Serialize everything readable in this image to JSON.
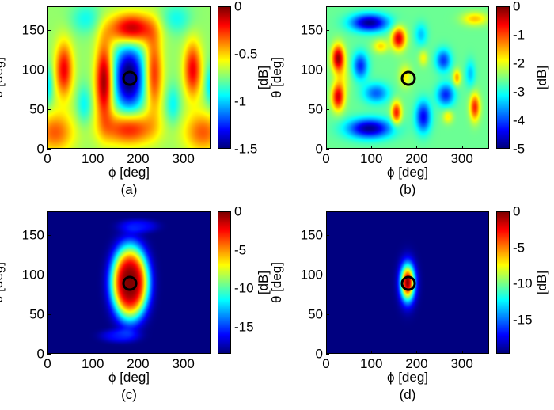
{
  "chart_data": [
    {
      "id": "a",
      "type": "heatmap",
      "caption": "(a)",
      "xlabel": "ϕ [deg]",
      "ylabel": "θ [deg]",
      "colorbar_label": "[dB]",
      "xlim": [
        0,
        360
      ],
      "ylim": [
        0,
        180
      ],
      "xticks": [
        "0",
        "100",
        "200",
        "300"
      ],
      "xtick_values": [
        0,
        100,
        200,
        300
      ],
      "yticks": [
        "0",
        "50",
        "100",
        "150"
      ],
      "ytick_values": [
        0,
        50,
        100,
        150
      ],
      "clim": [
        -1.5,
        0
      ],
      "cticks": [
        "0",
        "-0.5",
        "-1",
        "-1.5"
      ],
      "ctick_values": [
        0,
        -0.5,
        -1,
        -1.5
      ],
      "colormap": "jet",
      "marker": {
        "phi": 180,
        "theta": 90,
        "shape": "circle",
        "color": "#000000"
      },
      "field_model": {
        "base_db": -0.72,
        "components": [
          {
            "phi": 180,
            "theta": 90,
            "sphi": 24,
            "stheta": 30,
            "amp": -0.85
          },
          {
            "phi": 125,
            "theta": 85,
            "sphi": 14,
            "stheta": 35,
            "amp": 0.72
          },
          {
            "phi": 235,
            "theta": 95,
            "sphi": 14,
            "stheta": 35,
            "amp": 0.5
          },
          {
            "phi": 185,
            "theta": 152,
            "sphi": 35,
            "stheta": 14,
            "amp": 0.7
          },
          {
            "phi": 180,
            "theta": 25,
            "sphi": 40,
            "stheta": 15,
            "amp": 0.55
          },
          {
            "phi": 35,
            "theta": 100,
            "sphi": 14,
            "stheta": 25,
            "amp": 0.55
          },
          {
            "phi": 322,
            "theta": 100,
            "sphi": 14,
            "stheta": 25,
            "amp": 0.55
          },
          {
            "phi": 15,
            "theta": 20,
            "sphi": 30,
            "stheta": 18,
            "amp": 0.4
          },
          {
            "phi": 345,
            "theta": 20,
            "sphi": 30,
            "stheta": 18,
            "amp": 0.4
          },
          {
            "phi": 80,
            "theta": 55,
            "sphi": 12,
            "stheta": 18,
            "amp": -0.22
          },
          {
            "phi": 278,
            "theta": 55,
            "sphi": 12,
            "stheta": 18,
            "amp": -0.22
          },
          {
            "phi": 85,
            "theta": 165,
            "sphi": 25,
            "stheta": 14,
            "amp": -0.2
          },
          {
            "phi": 285,
            "theta": 165,
            "sphi": 25,
            "stheta": 14,
            "amp": -0.2
          },
          {
            "phi": 0,
            "theta": 80,
            "sphi": 8,
            "stheta": 18,
            "amp": -0.25
          },
          {
            "phi": 360,
            "theta": 80,
            "sphi": 8,
            "stheta": 18,
            "amp": -0.25
          }
        ]
      }
    },
    {
      "id": "b",
      "type": "heatmap",
      "caption": "(b)",
      "xlabel": "ϕ [deg]",
      "ylabel": "θ [deg]",
      "colorbar_label": "[dB]",
      "xlim": [
        0,
        360
      ],
      "ylim": [
        0,
        180
      ],
      "xticks": [
        "0",
        "100",
        "200",
        "300"
      ],
      "xtick_values": [
        0,
        100,
        200,
        300
      ],
      "yticks": [
        "0",
        "50",
        "100",
        "150"
      ],
      "ytick_values": [
        0,
        50,
        100,
        150
      ],
      "clim": [
        -5,
        0
      ],
      "cticks": [
        "0",
        "-1",
        "-2",
        "-3",
        "-4",
        "-5"
      ],
      "ctick_values": [
        0,
        -1,
        -2,
        -3,
        -4,
        -5
      ],
      "colormap": "jet",
      "marker": {
        "phi": 180,
        "theta": 90,
        "shape": "circle",
        "color": "#000000"
      },
      "field_model": {
        "base_db": -2.6,
        "components": [
          {
            "phi": 95,
            "theta": 160,
            "sphi": 30,
            "stheta": 8,
            "amp": -2.3
          },
          {
            "phi": 95,
            "theta": 25,
            "sphi": 35,
            "stheta": 9,
            "amp": -2.3
          },
          {
            "phi": 25,
            "theta": 115,
            "sphi": 10,
            "stheta": 12,
            "amp": 2.4
          },
          {
            "phi": 25,
            "theta": 65,
            "sphi": 10,
            "stheta": 12,
            "amp": 2.1
          },
          {
            "phi": 160,
            "theta": 140,
            "sphi": 11,
            "stheta": 10,
            "amp": 2.2
          },
          {
            "phi": 155,
            "theta": 45,
            "sphi": 8,
            "stheta": 10,
            "amp": 1.9
          },
          {
            "phi": 330,
            "theta": 52,
            "sphi": 8,
            "stheta": 12,
            "amp": 1.8
          },
          {
            "phi": 75,
            "theta": 105,
            "sphi": 12,
            "stheta": 12,
            "amp": -1.6
          },
          {
            "phi": 110,
            "theta": 70,
            "sphi": 20,
            "stheta": 9,
            "amp": -1.3
          },
          {
            "phi": 215,
            "theta": 40,
            "sphi": 12,
            "stheta": 14,
            "amp": -1.8
          },
          {
            "phi": 265,
            "theta": 68,
            "sphi": 14,
            "stheta": 10,
            "amp": -1.6
          },
          {
            "phi": 260,
            "theta": 112,
            "sphi": 12,
            "stheta": 10,
            "amp": -1.5
          },
          {
            "phi": 210,
            "theta": 145,
            "sphi": 10,
            "stheta": 10,
            "amp": -0.8
          },
          {
            "phi": 320,
            "theta": 95,
            "sphi": 8,
            "stheta": 12,
            "amp": -0.8
          },
          {
            "phi": 330,
            "theta": 165,
            "sphi": 20,
            "stheta": 6,
            "amp": 1.0
          },
          {
            "phi": 290,
            "theta": 90,
            "sphi": 6,
            "stheta": 7,
            "amp": 1.2
          },
          {
            "phi": 175,
            "theta": 92,
            "sphi": 10,
            "stheta": 10,
            "amp": 0.8
          },
          {
            "phi": 215,
            "theta": 115,
            "sphi": 7,
            "stheta": 7,
            "amp": 0.7
          },
          {
            "phi": 270,
            "theta": 40,
            "sphi": 8,
            "stheta": 6,
            "amp": 0.8
          },
          {
            "phi": 120,
            "theta": 130,
            "sphi": 12,
            "stheta": 6,
            "amp": 0.9
          },
          {
            "phi": 35,
            "theta": 90,
            "sphi": 12,
            "stheta": 14,
            "amp": 0.5
          }
        ]
      }
    },
    {
      "id": "c",
      "type": "heatmap",
      "caption": "(c)",
      "xlabel": "ϕ [deg]",
      "ylabel": "θ [deg]",
      "colorbar_label": "[dB]",
      "xlim": [
        0,
        360
      ],
      "ylim": [
        0,
        180
      ],
      "xticks": [
        "0",
        "100",
        "200",
        "300"
      ],
      "xtick_values": [
        0,
        100,
        200,
        300
      ],
      "yticks": [
        "0",
        "50",
        "100",
        "150"
      ],
      "ytick_values": [
        0,
        50,
        100,
        150
      ],
      "clim": [
        -18.5,
        0
      ],
      "cticks": [
        "0",
        "-5",
        "-10",
        "-15"
      ],
      "ctick_values": [
        0,
        -5,
        -10,
        -15
      ],
      "colormap": "jet",
      "marker": {
        "phi": 180,
        "theta": 90,
        "shape": "circle",
        "color": "#000000"
      },
      "field_model": {
        "base_db": -18.5,
        "power": 1.6,
        "components": [
          {
            "phi": 182,
            "theta": 90,
            "sphi": 34,
            "stheta": 38,
            "amp": 18.5
          },
          {
            "phi": 200,
            "theta": 162,
            "sphi": 35,
            "stheta": 7,
            "amp": 2.5
          },
          {
            "phi": 160,
            "theta": 22,
            "sphi": 35,
            "stheta": 7,
            "amp": 2.5
          }
        ]
      }
    },
    {
      "id": "d",
      "type": "heatmap",
      "caption": "(d)",
      "xlabel": "ϕ [deg]",
      "ylabel": "θ [deg]",
      "colorbar_label": "[dB]",
      "xlim": [
        0,
        360
      ],
      "ylim": [
        0,
        180
      ],
      "xticks": [
        "0",
        "100",
        "200",
        "300"
      ],
      "xtick_values": [
        0,
        100,
        200,
        300
      ],
      "yticks": [
        "0",
        "50",
        "100",
        "150"
      ],
      "ytick_values": [
        0,
        50,
        100,
        150
      ],
      "clim": [
        -19.7,
        0
      ],
      "cticks": [
        "0",
        "-5",
        "-10",
        "-15"
      ],
      "ctick_values": [
        0,
        -5,
        -10,
        -15
      ],
      "colormap": "jet",
      "marker": {
        "phi": 180,
        "theta": 90,
        "shape": "circle",
        "color": "#000000"
      },
      "field_model": {
        "base_db": -19.7,
        "power": 1.0,
        "components": [
          {
            "phi": 180,
            "theta": 90,
            "sphi": 11,
            "stheta": 16,
            "amp": 19.7
          }
        ]
      }
    }
  ]
}
